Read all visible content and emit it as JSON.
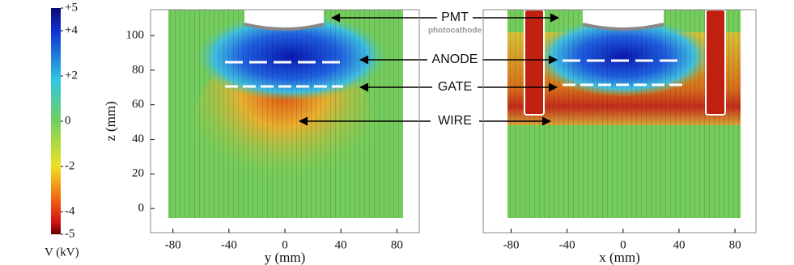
{
  "chart_data": [
    {
      "type": "colorbar",
      "label": "V (kV)",
      "ylim": [
        -5,
        5
      ],
      "yticks": [
        {
          "value": 5,
          "label": "+5"
        },
        {
          "value": 4,
          "label": "+4"
        },
        {
          "value": 2,
          "label": "+2"
        },
        0,
        -2,
        -4,
        -5
      ]
    },
    {
      "type": "heatmap",
      "xlabel": "y (mm)",
      "ylabel": "z (mm)",
      "xlim": [
        -96,
        96
      ],
      "ylim": [
        -14,
        115
      ],
      "xticks": [
        -80,
        -40,
        0,
        40,
        80
      ],
      "yticks": [
        0,
        20,
        40,
        60,
        80,
        100
      ],
      "annotations": [
        "PMT",
        "photocathode",
        "ANODE",
        "GATE",
        "WIRE"
      ]
    },
    {
      "type": "heatmap",
      "xlabel": "x (mm)",
      "xlim": [
        -100,
        95
      ],
      "xticks": [
        -80,
        -40,
        0,
        40,
        80
      ]
    }
  ]
}
